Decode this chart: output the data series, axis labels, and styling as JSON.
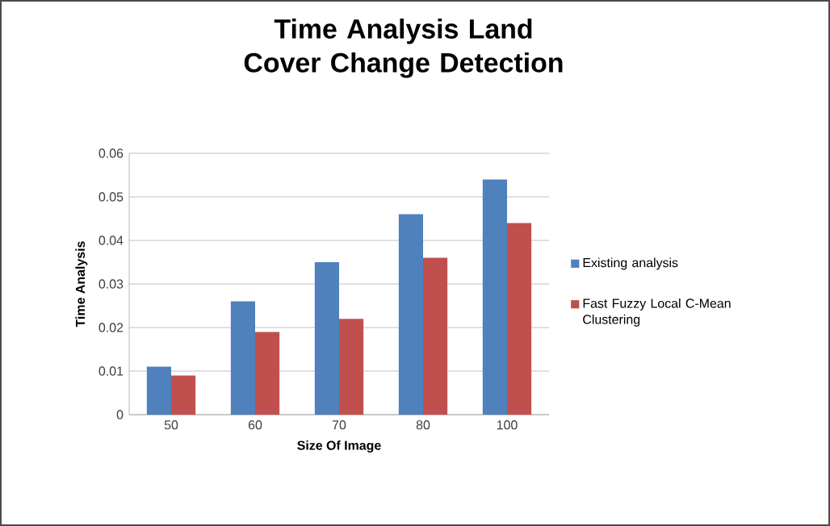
{
  "chart_data": {
    "type": "bar",
    "title": "Time Analysis Land Cover Change Detection",
    "xlabel": "Size Of Image",
    "ylabel": "Time  Analysis",
    "categories": [
      "50",
      "60",
      "70",
      "80",
      "100"
    ],
    "series": [
      {
        "name": "Existing analysis",
        "color": "#4f81bd",
        "values": [
          0.011,
          0.026,
          0.035,
          0.046,
          0.054
        ]
      },
      {
        "name": "Fast Fuzzy Local C-Mean Clustering",
        "color": "#c0504d",
        "values": [
          0.009,
          0.019,
          0.022,
          0.036,
          0.044
        ]
      }
    ],
    "ylim": [
      0,
      0.06
    ],
    "yticks": [
      0,
      0.01,
      0.02,
      0.03,
      0.04,
      0.05,
      0.06
    ],
    "grid": "y",
    "legend": "right"
  }
}
